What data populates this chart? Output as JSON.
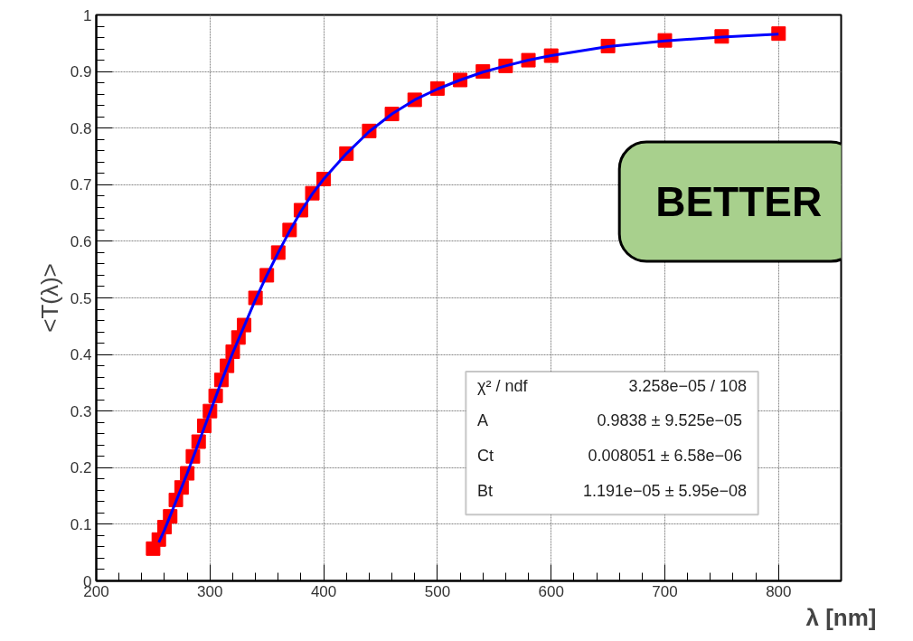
{
  "chart_data": {
    "type": "scatter",
    "xlabel": "λ [nm]",
    "ylabel": "<T(λ)>",
    "xlim": [
      200,
      855
    ],
    "ylim": [
      0,
      1
    ],
    "xticks": [
      200,
      300,
      400,
      500,
      600,
      700,
      800
    ],
    "yticks": [
      0,
      0.1,
      0.2,
      0.3,
      0.4,
      0.5,
      0.6,
      0.7,
      0.8,
      0.9,
      1
    ],
    "grid": true,
    "x": [
      250,
      255,
      260,
      265,
      270,
      275,
      280,
      285,
      290,
      295,
      300,
      305,
      310,
      315,
      320,
      325,
      330,
      340,
      350,
      360,
      370,
      380,
      390,
      400,
      420,
      440,
      460,
      480,
      500,
      520,
      540,
      560,
      580,
      600,
      650,
      700,
      750,
      800
    ],
    "series": [
      {
        "marker": "square",
        "color": "#ff0000",
        "values": [
          0.057,
          0.073,
          0.095,
          0.114,
          0.143,
          0.165,
          0.19,
          0.22,
          0.246,
          0.274,
          0.3,
          0.327,
          0.355,
          0.38,
          0.405,
          0.43,
          0.452,
          0.5,
          0.54,
          0.58,
          0.62,
          0.655,
          0.685,
          0.71,
          0.755,
          0.795,
          0.825,
          0.85,
          0.87,
          0.885,
          0.9,
          0.91,
          0.92,
          0.928,
          0.945,
          0.955,
          0.962,
          0.967
        ]
      },
      {
        "type": "line",
        "color": "#0000ff",
        "x": [
          255,
          260,
          270,
          280,
          290,
          300,
          310,
          320,
          330,
          340,
          350,
          360,
          370,
          380,
          390,
          400,
          420,
          440,
          460,
          480,
          500,
          520,
          540,
          560,
          580,
          600,
          650,
          700,
          750,
          800
        ],
        "values": [
          0.068,
          0.09,
          0.14,
          0.19,
          0.244,
          0.298,
          0.352,
          0.403,
          0.45,
          0.497,
          0.54,
          0.58,
          0.618,
          0.653,
          0.684,
          0.71,
          0.755,
          0.794,
          0.825,
          0.85,
          0.869,
          0.885,
          0.899,
          0.91,
          0.92,
          0.928,
          0.944,
          0.954,
          0.961,
          0.966
        ]
      }
    ],
    "annotations": [
      "χ² / ndf",
      "3.258e−05 / 108",
      "A",
      "0.9838  ± 9.525e−05",
      "Ct",
      "0.008051  ± 6.58e−06",
      "Bt",
      "1.191e−05 ± 5.95e−08",
      "BETTER"
    ]
  }
}
